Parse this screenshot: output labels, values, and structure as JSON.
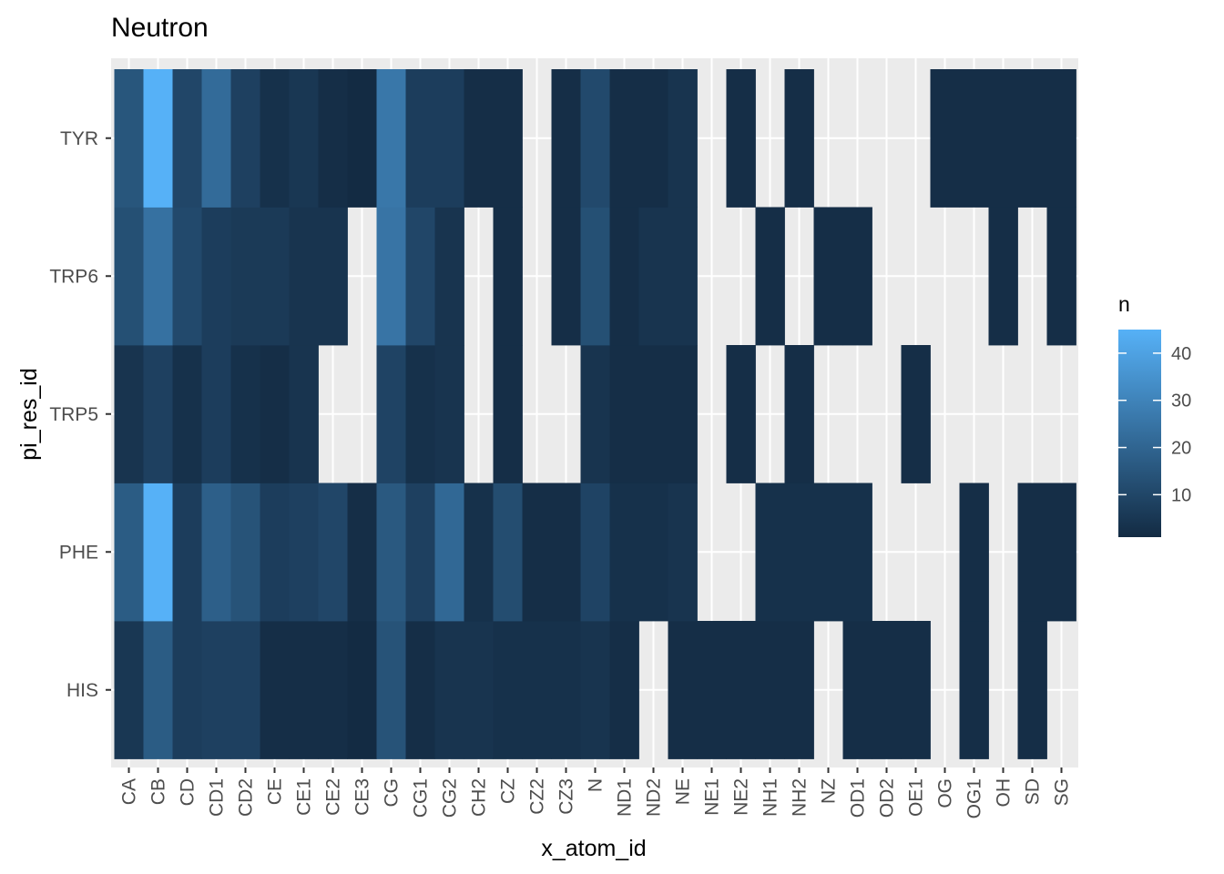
{
  "chart_data": {
    "type": "heatmap",
    "title": "Neutron",
    "xlabel": "x_atom_id",
    "ylabel": "pi_res_id",
    "x_categories": [
      "CA",
      "CB",
      "CD",
      "CD1",
      "CD2",
      "CE",
      "CE1",
      "CE2",
      "CE3",
      "CG",
      "CG1",
      "CG2",
      "CH2",
      "CZ",
      "CZ2",
      "CZ3",
      "N",
      "ND1",
      "ND2",
      "NE",
      "NE1",
      "NE2",
      "NH1",
      "NH2",
      "NZ",
      "OD1",
      "OD2",
      "OE1",
      "OG",
      "OG1",
      "OH",
      "SD",
      "SG"
    ],
    "y_categories": [
      "HIS",
      "PHE",
      "TRP5",
      "TRP6",
      "TYR"
    ],
    "rows": {
      "TYR": [
        15,
        45,
        10,
        22,
        8,
        3,
        5,
        2,
        1,
        26,
        7,
        7,
        2,
        2,
        null,
        2,
        11,
        2,
        2,
        4,
        null,
        2,
        null,
        2,
        null,
        null,
        null,
        null,
        2,
        2,
        2,
        2,
        2
      ],
      "TRP6": [
        13,
        24,
        11,
        7,
        6,
        6,
        4,
        4,
        null,
        25,
        10,
        4,
        null,
        2,
        null,
        2,
        13,
        2,
        4,
        4,
        null,
        null,
        2,
        null,
        2,
        2,
        null,
        null,
        null,
        null,
        2,
        null,
        2
      ],
      "TRP5": [
        4,
        8,
        3,
        7,
        3,
        2,
        4,
        null,
        null,
        9,
        3,
        4,
        null,
        2,
        null,
        null,
        4,
        2,
        2,
        2,
        null,
        2,
        null,
        2,
        null,
        null,
        null,
        2,
        null,
        null,
        null,
        null,
        null
      ],
      "PHE": [
        17,
        45,
        7,
        18,
        14,
        7,
        8,
        10,
        2,
        16,
        8,
        21,
        3,
        12,
        2,
        2,
        9,
        3,
        3,
        4,
        null,
        null,
        3,
        3,
        3,
        3,
        null,
        null,
        null,
        2,
        null,
        2,
        2
      ],
      "HIS": [
        5,
        17,
        7,
        8,
        8,
        2,
        2,
        2,
        1,
        14,
        2,
        4,
        4,
        3,
        3,
        3,
        4,
        2,
        null,
        2,
        2,
        2,
        2,
        2,
        null,
        2,
        2,
        2,
        null,
        2,
        null,
        2,
        null
      ]
    },
    "color_scale": {
      "low": "#132b43",
      "high": "#56b1f7",
      "limits": [
        1,
        45
      ],
      "na_color": "#ebebeb"
    },
    "legend": {
      "title": "n",
      "breaks": [
        10,
        20,
        30,
        40
      ],
      "position": "right"
    },
    "grid": true,
    "panel_background": "#ebebeb",
    "grid_color": "#ffffff"
  }
}
